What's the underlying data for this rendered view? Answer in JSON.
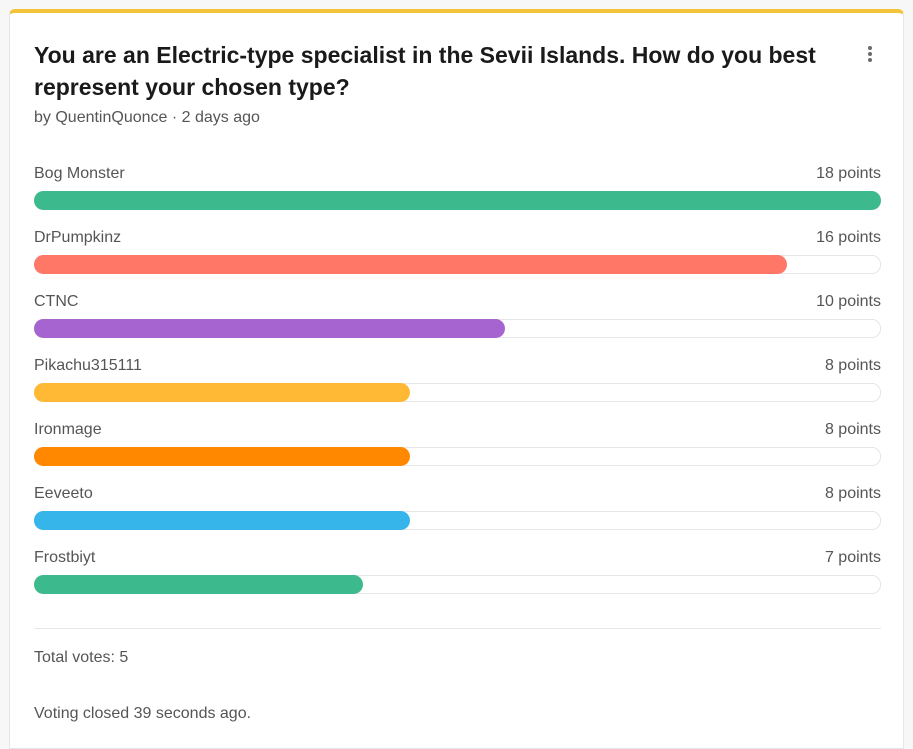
{
  "poll": {
    "title": "You are an Electric-type specialist in the Sevii Islands. How do you best represent your chosen type?",
    "meta": "by QuentinQuonce · 2 days ago",
    "options": [
      {
        "label": "Bog Monster",
        "points_text": "18 points",
        "points": 18,
        "color": "#3dba8d"
      },
      {
        "label": "DrPumpkinz",
        "points_text": "16 points",
        "points": 16,
        "color": "#ff7766"
      },
      {
        "label": "CTNC",
        "points_text": "10 points",
        "points": 10,
        "color": "#a564d0"
      },
      {
        "label": "Pikachu315111",
        "points_text": "8 points",
        "points": 8,
        "color": "#ffb934"
      },
      {
        "label": "Ironmage",
        "points_text": "8 points",
        "points": 8,
        "color": "#ff8800"
      },
      {
        "label": "Eeveeto",
        "points_text": "8 points",
        "points": 8,
        "color": "#35b5e9"
      },
      {
        "label": "Frostbiyt",
        "points_text": "7 points",
        "points": 7,
        "color": "#3dba8d"
      }
    ],
    "max_points": 18,
    "total_votes": "Total votes: 5",
    "voting_status": "Voting closed 39 seconds ago."
  },
  "colors": {
    "accent_top": "#f3c33a"
  }
}
